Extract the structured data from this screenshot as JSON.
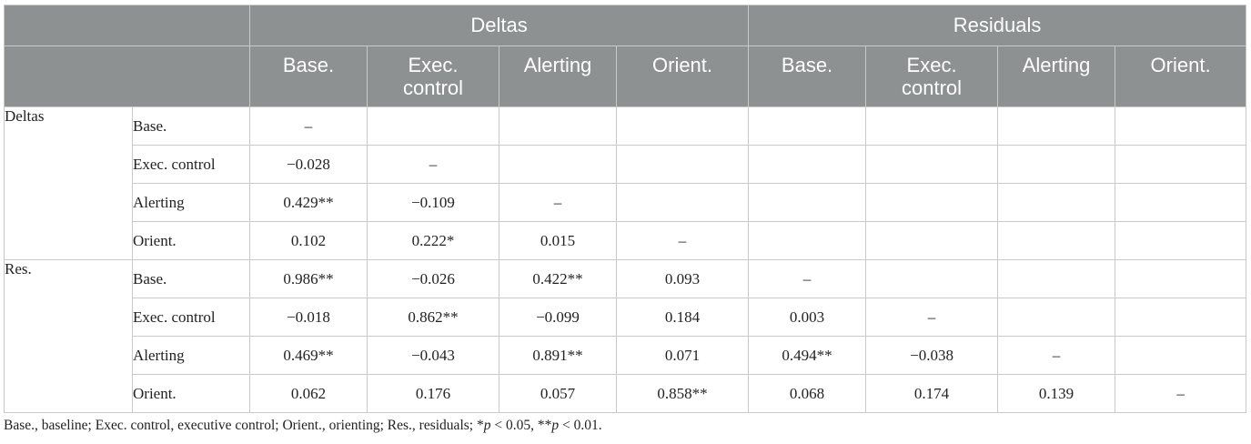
{
  "header": {
    "groups": [
      "Deltas",
      "Residuals"
    ],
    "columns": [
      "Base.",
      "Exec. control",
      "Alerting",
      "Orient.",
      "Base.",
      "Exec. control",
      "Alerting",
      "Orient."
    ]
  },
  "sections": [
    {
      "label": "Deltas",
      "rows": [
        {
          "label": "Base.",
          "values": [
            "–",
            "",
            "",
            "",
            "",
            "",
            "",
            ""
          ]
        },
        {
          "label": "Exec. control",
          "values": [
            "−0.028",
            "–",
            "",
            "",
            "",
            "",
            "",
            ""
          ]
        },
        {
          "label": "Alerting",
          "values": [
            "0.429**",
            "−0.109",
            "–",
            "",
            "",
            "",
            "",
            ""
          ]
        },
        {
          "label": "Orient.",
          "values": [
            "0.102",
            "0.222*",
            "0.015",
            "–",
            "",
            "",
            "",
            ""
          ]
        }
      ]
    },
    {
      "label": "Res.",
      "rows": [
        {
          "label": "Base.",
          "values": [
            "0.986**",
            "−0.026",
            "0.422**",
            "0.093",
            "–",
            "",
            "",
            ""
          ]
        },
        {
          "label": "Exec. control",
          "values": [
            "−0.018",
            "0.862**",
            "−0.099",
            "0.184",
            "0.003",
            "–",
            "",
            ""
          ]
        },
        {
          "label": "Alerting",
          "values": [
            "0.469**",
            "−0.043",
            "0.891**",
            "0.071",
            "0.494**",
            "−0.038",
            "–",
            ""
          ]
        },
        {
          "label": "Orient.",
          "values": [
            "0.062",
            "0.176",
            "0.057",
            "0.858**",
            "0.068",
            "0.174",
            "0.139",
            "–"
          ]
        }
      ]
    }
  ],
  "footnote": {
    "lead": "Base., baseline; Exec. control, executive control; Orient., orienting; Res., residuals; *",
    "p1": "p",
    "t1": " < 0.05, **",
    "p2": "p",
    "t2": " < 0.01."
  }
}
